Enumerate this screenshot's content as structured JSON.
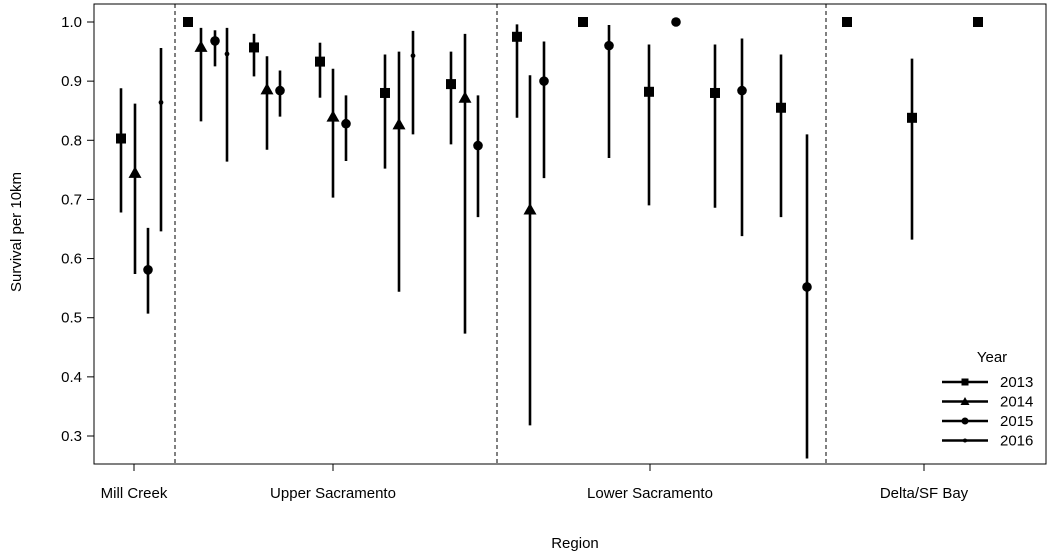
{
  "chart_data": {
    "type": "scatter",
    "subtype": "point-with-error-bars",
    "title": "",
    "xlabel": "Region",
    "ylabel": "Survival per 10km",
    "ylim": [
      0.25,
      1.02
    ],
    "y_ticks": [
      "0.3",
      "0.4",
      "0.5",
      "0.6",
      "0.7",
      "0.8",
      "0.9",
      "1.0"
    ],
    "categories": [
      "Mill Creek",
      "Upper Sacramento",
      "Lower Sacramento",
      "Delta/SF Bay"
    ],
    "region_dividers": "dashed vertical lines between regions",
    "grid": false,
    "legend": {
      "title": "Year",
      "position": "bottom-right",
      "entries": [
        {
          "label": "2013",
          "marker": "square"
        },
        {
          "label": "2014",
          "marker": "triangle"
        },
        {
          "label": "2015",
          "marker": "circle"
        },
        {
          "label": "2016",
          "marker": "small-dot"
        }
      ]
    },
    "series": [
      {
        "name": "2013",
        "marker": "square",
        "points": [
          {
            "region": "Mill Creek",
            "y": 0.803,
            "lo": 0.678,
            "hi": 0.888
          },
          {
            "region": "Upper Sacramento",
            "y": 1.0,
            "lo": null,
            "hi": null
          },
          {
            "region": "Upper Sacramento",
            "y": 0.957,
            "lo": 0.908,
            "hi": 0.98
          },
          {
            "region": "Upper Sacramento",
            "y": 0.933,
            "lo": 0.872,
            "hi": 0.965
          },
          {
            "region": "Upper Sacramento",
            "y": 0.88,
            "lo": 0.752,
            "hi": 0.945
          },
          {
            "region": "Upper Sacramento",
            "y": 0.895,
            "lo": 0.793,
            "hi": 0.95
          },
          {
            "region": "Lower Sacramento",
            "y": 0.975,
            "lo": 0.838,
            "hi": 0.996
          },
          {
            "region": "Lower Sacramento",
            "y": 1.0,
            "lo": null,
            "hi": null
          },
          {
            "region": "Lower Sacramento",
            "y": 0.882,
            "lo": 0.69,
            "hi": 0.962
          },
          {
            "region": "Lower Sacramento",
            "y": 0.88,
            "lo": 0.686,
            "hi": 0.962
          },
          {
            "region": "Lower Sacramento",
            "y": 0.855,
            "lo": 0.67,
            "hi": 0.945
          },
          {
            "region": "Delta/SF Bay",
            "y": 1.0,
            "lo": null,
            "hi": null
          },
          {
            "region": "Delta/SF Bay",
            "y": 0.838,
            "lo": 0.632,
            "hi": 0.938
          },
          {
            "region": "Delta/SF Bay",
            "y": 1.0,
            "lo": null,
            "hi": null
          }
        ]
      },
      {
        "name": "2014",
        "marker": "triangle",
        "points": [
          {
            "region": "Mill Creek",
            "y": 0.745,
            "lo": 0.574,
            "hi": 0.862
          },
          {
            "region": "Upper Sacramento",
            "y": 0.958,
            "lo": 0.832,
            "hi": 0.99
          },
          {
            "region": "Upper Sacramento",
            "y": 0.886,
            "lo": 0.784,
            "hi": 0.942
          },
          {
            "region": "Upper Sacramento",
            "y": 0.84,
            "lo": 0.703,
            "hi": 0.921
          },
          {
            "region": "Upper Sacramento",
            "y": 0.827,
            "lo": 0.544,
            "hi": 0.95
          },
          {
            "region": "Upper Sacramento",
            "y": 0.872,
            "lo": 0.473,
            "hi": 0.98
          },
          {
            "region": "Lower Sacramento",
            "y": 0.683,
            "lo": 0.318,
            "hi": 0.91
          }
        ]
      },
      {
        "name": "2015",
        "marker": "circle",
        "points": [
          {
            "region": "Mill Creek",
            "y": 0.581,
            "lo": 0.507,
            "hi": 0.652
          },
          {
            "region": "Upper Sacramento",
            "y": 0.968,
            "lo": 0.925,
            "hi": 0.986
          },
          {
            "region": "Upper Sacramento",
            "y": 0.884,
            "lo": 0.84,
            "hi": 0.918
          },
          {
            "region": "Upper Sacramento",
            "y": 0.828,
            "lo": 0.765,
            "hi": 0.876
          },
          {
            "region": "Upper Sacramento",
            "y": 0.791,
            "lo": 0.67,
            "hi": 0.876
          },
          {
            "region": "Lower Sacramento",
            "y": 0.9,
            "lo": 0.736,
            "hi": 0.967
          },
          {
            "region": "Lower Sacramento",
            "y": 0.96,
            "lo": 0.77,
            "hi": 0.995
          },
          {
            "region": "Lower Sacramento",
            "y": 1.0,
            "lo": null,
            "hi": null
          },
          {
            "region": "Lower Sacramento",
            "y": 0.884,
            "lo": 0.638,
            "hi": 0.972
          },
          {
            "region": "Lower Sacramento",
            "y": 0.552,
            "lo": 0.262,
            "hi": 0.81
          }
        ]
      },
      {
        "name": "2016",
        "marker": "small-dot",
        "points": [
          {
            "region": "Mill Creek",
            "y": 0.864,
            "lo": 0.646,
            "hi": 0.956
          },
          {
            "region": "Upper Sacramento",
            "y": 0.946,
            "lo": 0.764,
            "hi": 0.99
          },
          {
            "region": "Upper Sacramento",
            "y": 0.943,
            "lo": 0.81,
            "hi": 0.985
          }
        ]
      }
    ]
  }
}
